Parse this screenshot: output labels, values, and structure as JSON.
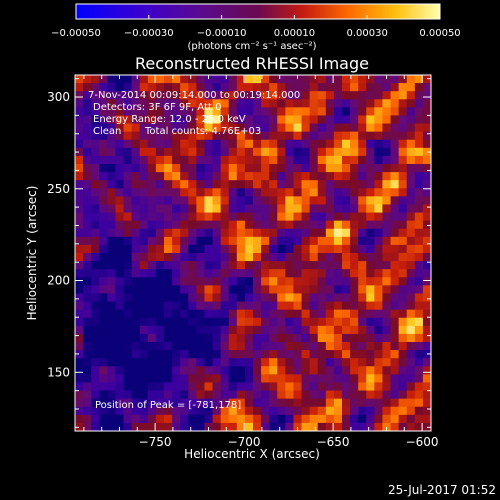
{
  "chart_data": {
    "type": "heatmap",
    "title": "Reconstructed RHESSI Image",
    "xlabel": "Heliocentric X (arcsec)",
    "ylabel": "Heliocentric Y (arcsec)",
    "xlim": [
      -795,
      -595
    ],
    "ylim": [
      118,
      312
    ],
    "x_ticks": [
      -750,
      -700,
      -650,
      -600
    ],
    "x_tick_labels": [
      "−750",
      "−700",
      "−650",
      "−600"
    ],
    "y_ticks": [
      150,
      200,
      250,
      300
    ],
    "y_tick_labels": [
      "150",
      "200",
      "250",
      "300"
    ],
    "colorbar": {
      "range": [
        -0.0005,
        0.0005
      ],
      "ticks": [
        -0.0005,
        -0.0003,
        -0.0001,
        0.0001,
        0.0003,
        0.0005
      ],
      "tick_labels": [
        "−0.00050",
        "−0.00030",
        "−0.00010",
        "0.00010",
        "0.00030",
        "0.00050"
      ],
      "units": "(photons cm⁻² s⁻¹ asec⁻²)"
    },
    "annotations": [
      "7-Nov-2014 00:09:14.000 to 00:19:14.000",
      "Detectors: 3F 6F 9F, Att 0",
      "Energy Range: 12.0 - 25.0 keV",
      "Clean",
      "Total counts: 4.76E+03"
    ],
    "peak_label": "Position of Peak = [-781,178]",
    "peak_position": [
      -781,
      178
    ],
    "grid": false
  },
  "footer": {
    "timestamp": "25-Jul-2017 01:52"
  }
}
